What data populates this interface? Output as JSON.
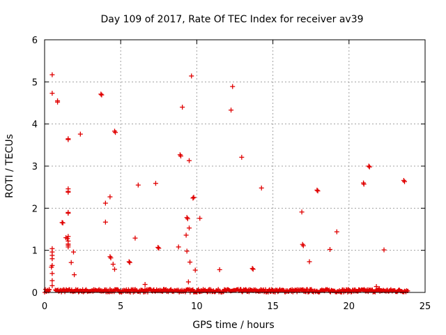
{
  "chart_data": {
    "type": "scatter",
    "title": "Day 109 of 2017, Rate Of TEC Index for receiver av39",
    "xlabel": "GPS time / hours",
    "ylabel": "ROTI / TECUs",
    "xlim": [
      0,
      25
    ],
    "ylim": [
      0,
      6
    ],
    "xticks": [
      0,
      5,
      10,
      15,
      20,
      25
    ],
    "yticks": [
      0,
      1,
      2,
      3,
      4,
      5,
      6
    ],
    "grid": true,
    "marker": "+",
    "marker_color": "#e00000",
    "points": [
      [
        0.5,
        5.17
      ],
      [
        0.5,
        4.73
      ],
      [
        0.85,
        4.55
      ],
      [
        0.85,
        4.52
      ],
      [
        1.55,
        3.65
      ],
      [
        1.55,
        3.63
      ],
      [
        2.35,
        3.76
      ],
      [
        1.55,
        2.46
      ],
      [
        1.55,
        2.4
      ],
      [
        1.55,
        2.38
      ],
      [
        1.55,
        1.9
      ],
      [
        1.55,
        1.88
      ],
      [
        1.15,
        1.66
      ],
      [
        1.2,
        1.65
      ],
      [
        1.4,
        1.3
      ],
      [
        1.5,
        1.28
      ],
      [
        1.55,
        1.33
      ],
      [
        1.55,
        1.22
      ],
      [
        1.55,
        1.15
      ],
      [
        1.55,
        1.12
      ],
      [
        1.55,
        1.08
      ],
      [
        1.9,
        0.96
      ],
      [
        1.75,
        0.71
      ],
      [
        1.95,
        0.42
      ],
      [
        0.5,
        1.04
      ],
      [
        0.5,
        0.96
      ],
      [
        0.5,
        0.88
      ],
      [
        0.5,
        0.8
      ],
      [
        0.5,
        0.64
      ],
      [
        0.45,
        0.6
      ],
      [
        0.5,
        0.45
      ],
      [
        0.5,
        0.28
      ],
      [
        0.5,
        0.16
      ],
      [
        0.3,
        0.07
      ],
      [
        3.7,
        4.71
      ],
      [
        3.75,
        4.69
      ],
      [
        4.6,
        3.83
      ],
      [
        4.65,
        3.8
      ],
      [
        4.0,
        2.12
      ],
      [
        4.3,
        2.27
      ],
      [
        4.0,
        1.67
      ],
      [
        4.3,
        0.85
      ],
      [
        4.35,
        0.82
      ],
      [
        4.5,
        0.67
      ],
      [
        4.6,
        0.55
      ],
      [
        6.15,
        2.55
      ],
      [
        5.95,
        1.29
      ],
      [
        5.55,
        0.73
      ],
      [
        5.6,
        0.71
      ],
      [
        6.6,
        0.19
      ],
      [
        7.3,
        2.59
      ],
      [
        7.5,
        1.05
      ],
      [
        7.45,
        1.07
      ],
      [
        8.9,
        3.27
      ],
      [
        8.95,
        3.24
      ],
      [
        9.05,
        4.4
      ],
      [
        9.5,
        3.13
      ],
      [
        9.65,
        5.14
      ],
      [
        9.8,
        2.26
      ],
      [
        9.75,
        2.24
      ],
      [
        9.35,
        1.78
      ],
      [
        9.4,
        1.75
      ],
      [
        10.2,
        1.76
      ],
      [
        9.5,
        1.53
      ],
      [
        9.3,
        1.36
      ],
      [
        8.8,
        1.08
      ],
      [
        9.35,
        0.98
      ],
      [
        9.55,
        0.72
      ],
      [
        9.9,
        0.53
      ],
      [
        9.45,
        0.25
      ],
      [
        11.5,
        0.54
      ],
      [
        12.25,
        4.33
      ],
      [
        12.35,
        4.89
      ],
      [
        12.95,
        3.21
      ],
      [
        13.65,
        0.57
      ],
      [
        13.7,
        0.55
      ],
      [
        14.25,
        2.48
      ],
      [
        16.9,
        1.91
      ],
      [
        16.95,
        1.14
      ],
      [
        17.0,
        1.11
      ],
      [
        17.4,
        0.73
      ],
      [
        17.9,
        2.43
      ],
      [
        17.95,
        2.41
      ],
      [
        18.75,
        1.02
      ],
      [
        19.2,
        1.44
      ],
      [
        20.95,
        2.6
      ],
      [
        20.98,
        2.57
      ],
      [
        21.3,
        3.0
      ],
      [
        21.35,
        2.98
      ],
      [
        21.8,
        0.14
      ],
      [
        22.0,
        0.09
      ],
      [
        22.3,
        1.01
      ],
      [
        23.6,
        2.66
      ],
      [
        23.65,
        2.63
      ]
    ],
    "baseline_band": {
      "x_ranges": [
        [
          0.0,
          0.35
        ],
        [
          0.7,
          23.9
        ]
      ],
      "y_range": [
        0.0,
        0.08
      ]
    }
  }
}
